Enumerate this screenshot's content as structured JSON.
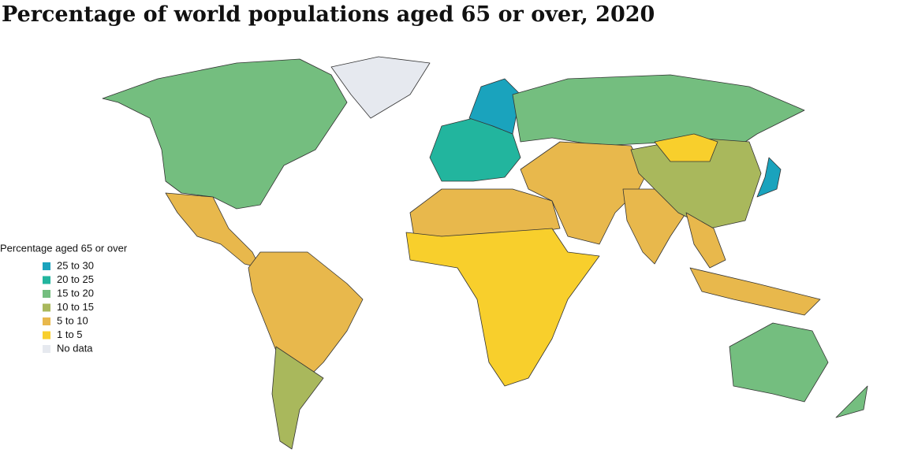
{
  "title": "Percentage of world populations aged 65 or over, 2020",
  "legend": {
    "title": "Percentage aged 65 or over",
    "items": [
      {
        "label": "25 to 30",
        "color": "#1aa3bd"
      },
      {
        "label": "20 to 25",
        "color": "#22b59e"
      },
      {
        "label": "15 to 20",
        "color": "#74be7f"
      },
      {
        "label": "10 to 15",
        "color": "#a9b85c"
      },
      {
        "label": "5 to 10",
        "color": "#e8b84c"
      },
      {
        "label": "1 to  5",
        "color": "#f8cf2c"
      },
      {
        "label": "No data",
        "color": "#e6e9ef"
      }
    ]
  }
}
